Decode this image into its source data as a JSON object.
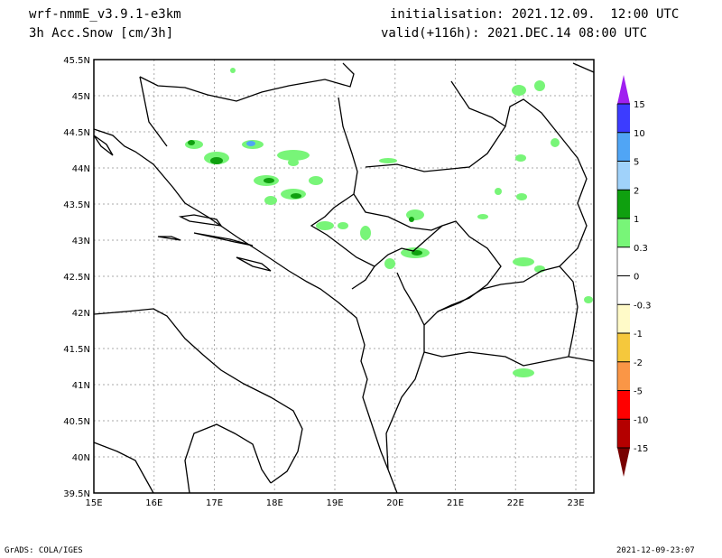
{
  "header": {
    "model": "wrf-nmmE_v3.9.1-e3km",
    "variable": "3h Acc.Snow [cm/3h]",
    "initialisation": "initialisation: 2021.12.09.  12:00 UTC",
    "valid": "valid(+116h): 2021.DEC.14 08:00 UTC"
  },
  "map": {
    "lon_labels": [
      "15E",
      "16E",
      "17E",
      "18E",
      "19E",
      "20E",
      "21E",
      "22E",
      "23E"
    ],
    "lat_labels": [
      "45.5N",
      "45N",
      "44.5N",
      "44N",
      "43.5N",
      "43N",
      "42.5N",
      "42N",
      "41.5N",
      "41N",
      "40.5N",
      "40N",
      "39.5N"
    ]
  },
  "colorbar": {
    "labels": [
      "15",
      "10",
      "5",
      "2",
      "1",
      "0.3",
      "0",
      "-0.3",
      "-1",
      "-2",
      "-5",
      "-10",
      "-15"
    ],
    "colors": [
      "#3c3cff",
      "#50a5f5",
      "#a0d2fa",
      "#0fa00f",
      "#78f578",
      "#ffffff",
      "#ffffff",
      "#fffac8",
      "#f5c83c",
      "#fa9646",
      "#ff0000",
      "#b40000"
    ],
    "top_arrow": "#a020f0",
    "bottom_arrow": "#780000"
  },
  "footer": {
    "left": "GrADS: COLA/IGES",
    "right": "2021-12-09-23:07"
  }
}
